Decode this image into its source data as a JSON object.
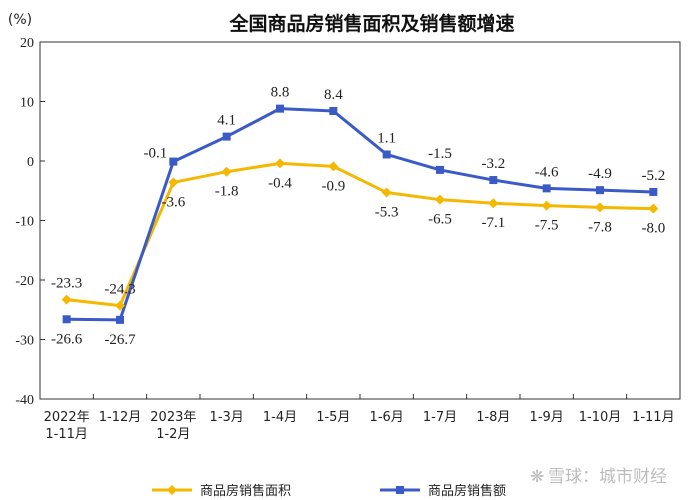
{
  "chart_data": {
    "type": "line",
    "title": "全国商品房销售面积及销售额增速",
    "ylabel": "(%)",
    "ylim": [
      -40,
      20
    ],
    "yticks": [
      20,
      10,
      0,
      -10,
      -20,
      -30,
      -40
    ],
    "x": [
      [
        "2022年",
        "1-11月"
      ],
      [
        "1-12月"
      ],
      [
        "2023年",
        "1-2月"
      ],
      [
        "1-3月"
      ],
      [
        "1-4月"
      ],
      [
        "1-5月"
      ],
      [
        "1-6月"
      ],
      [
        "1-7月"
      ],
      [
        "1-8月"
      ],
      [
        "1-9月"
      ],
      [
        "1-10月"
      ],
      [
        "1-11月"
      ]
    ],
    "series": [
      {
        "name": "商品房销售面积",
        "color": "#F5B800",
        "marker": "diamond",
        "values": [
          -23.3,
          -24.3,
          -3.6,
          -1.8,
          -0.4,
          -0.9,
          -5.3,
          -6.5,
          -7.1,
          -7.5,
          -7.8,
          -8.0
        ],
        "labels": [
          "-23.3",
          "-24.3",
          "-3.6",
          "-1.8",
          "-0.4",
          "-0.9",
          "-5.3",
          "-6.5",
          "-7.1",
          "-7.5",
          "-7.8",
          "-8.0"
        ]
      },
      {
        "name": "商品房销售额",
        "color": "#3A5BC7",
        "marker": "square",
        "values": [
          -26.6,
          -26.7,
          -0.1,
          4.1,
          8.8,
          8.4,
          1.1,
          -1.5,
          -3.2,
          -4.6,
          -4.9,
          -5.2
        ],
        "labels": [
          "-26.6",
          "-26.7",
          "-0.1",
          "4.1",
          "8.8",
          "8.4",
          "1.1",
          "-1.5",
          "-3.2",
          "-4.6",
          "-4.9",
          "-5.2"
        ]
      }
    ],
    "grid": false,
    "legend": "bottom"
  },
  "watermark": "雪球：城市财经"
}
